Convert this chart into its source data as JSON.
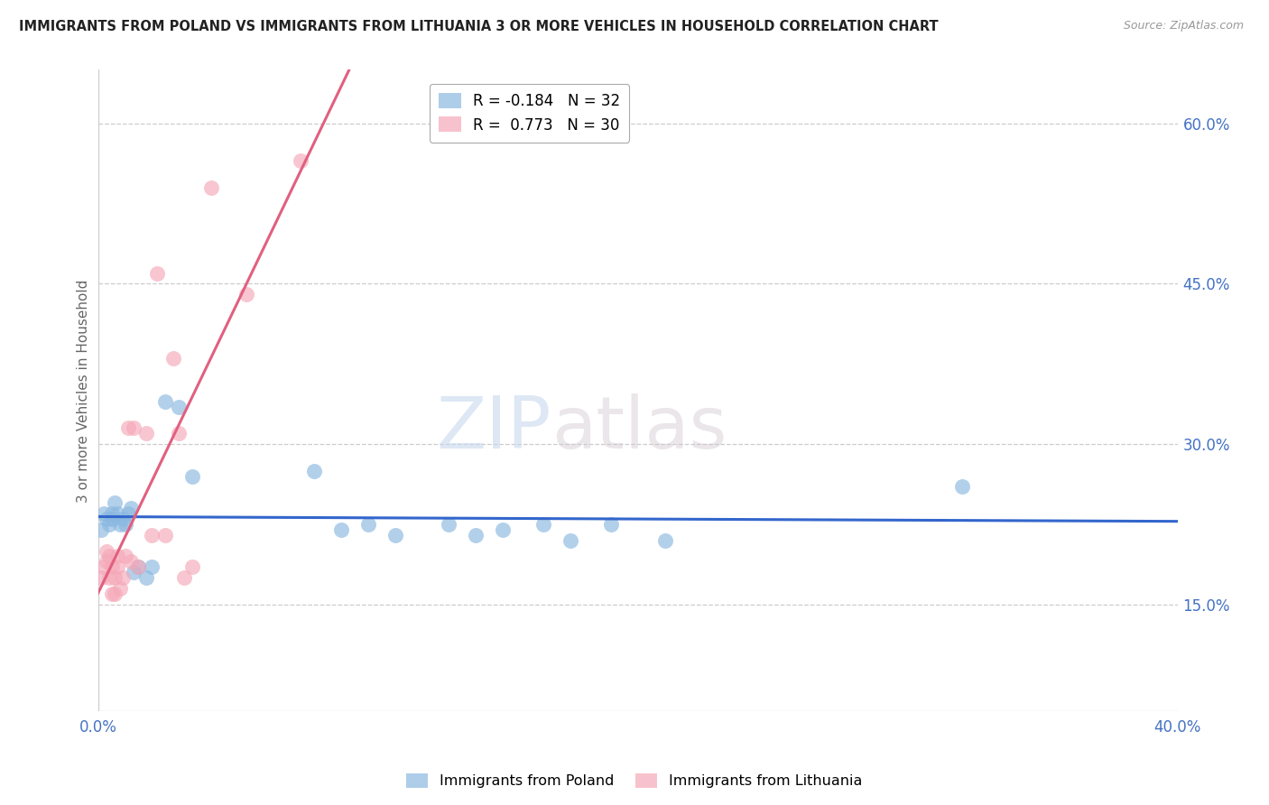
{
  "title": "IMMIGRANTS FROM POLAND VS IMMIGRANTS FROM LITHUANIA 3 OR MORE VEHICLES IN HOUSEHOLD CORRELATION CHART",
  "source": "Source: ZipAtlas.com",
  "ylabel": "3 or more Vehicles in Household",
  "xmin": 0.0,
  "xmax": 0.4,
  "ymin": 0.05,
  "ymax": 0.65,
  "yticks": [
    0.15,
    0.3,
    0.45,
    0.6
  ],
  "ytick_labels": [
    "15.0%",
    "30.0%",
    "45.0%",
    "60.0%"
  ],
  "xticks": [
    0.0,
    0.05,
    0.1,
    0.15,
    0.2,
    0.25,
    0.3,
    0.35,
    0.4
  ],
  "xtick_labels": [
    "0.0%",
    "",
    "",
    "",
    "",
    "",
    "",
    "",
    "40.0%"
  ],
  "poland_color": "#8ab8e0",
  "lithuania_color": "#f5a8b8",
  "poland_R": -0.184,
  "poland_N": 32,
  "lithuania_R": 0.773,
  "lithuania_N": 30,
  "trend_poland_color": "#3366cc",
  "trend_lithuania_color": "#e06080",
  "background_color": "#ffffff",
  "watermark_zip": "ZIP",
  "watermark_atlas": "atlas",
  "poland_x": [
    0.001,
    0.002,
    0.003,
    0.004,
    0.005,
    0.005,
    0.006,
    0.007,
    0.008,
    0.009,
    0.01,
    0.011,
    0.012,
    0.013,
    0.015,
    0.018,
    0.02,
    0.025,
    0.03,
    0.035,
    0.08,
    0.09,
    0.1,
    0.11,
    0.13,
    0.14,
    0.15,
    0.165,
    0.175,
    0.19,
    0.21,
    0.32
  ],
  "poland_y": [
    0.22,
    0.235,
    0.23,
    0.225,
    0.23,
    0.235,
    0.245,
    0.235,
    0.225,
    0.23,
    0.225,
    0.235,
    0.24,
    0.18,
    0.185,
    0.175,
    0.185,
    0.34,
    0.335,
    0.27,
    0.275,
    0.22,
    0.225,
    0.215,
    0.225,
    0.215,
    0.22,
    0.225,
    0.21,
    0.225,
    0.21,
    0.26
  ],
  "lithuania_x": [
    0.001,
    0.002,
    0.003,
    0.003,
    0.004,
    0.004,
    0.005,
    0.005,
    0.006,
    0.006,
    0.007,
    0.007,
    0.008,
    0.009,
    0.01,
    0.011,
    0.012,
    0.013,
    0.015,
    0.018,
    0.02,
    0.022,
    0.025,
    0.028,
    0.03,
    0.032,
    0.035,
    0.042,
    0.055,
    0.075
  ],
  "lithuania_y": [
    0.175,
    0.185,
    0.19,
    0.2,
    0.195,
    0.175,
    0.185,
    0.16,
    0.175,
    0.16,
    0.195,
    0.185,
    0.165,
    0.175,
    0.195,
    0.315,
    0.19,
    0.315,
    0.185,
    0.31,
    0.215,
    0.46,
    0.215,
    0.38,
    0.31,
    0.175,
    0.185,
    0.54,
    0.44,
    0.565
  ]
}
